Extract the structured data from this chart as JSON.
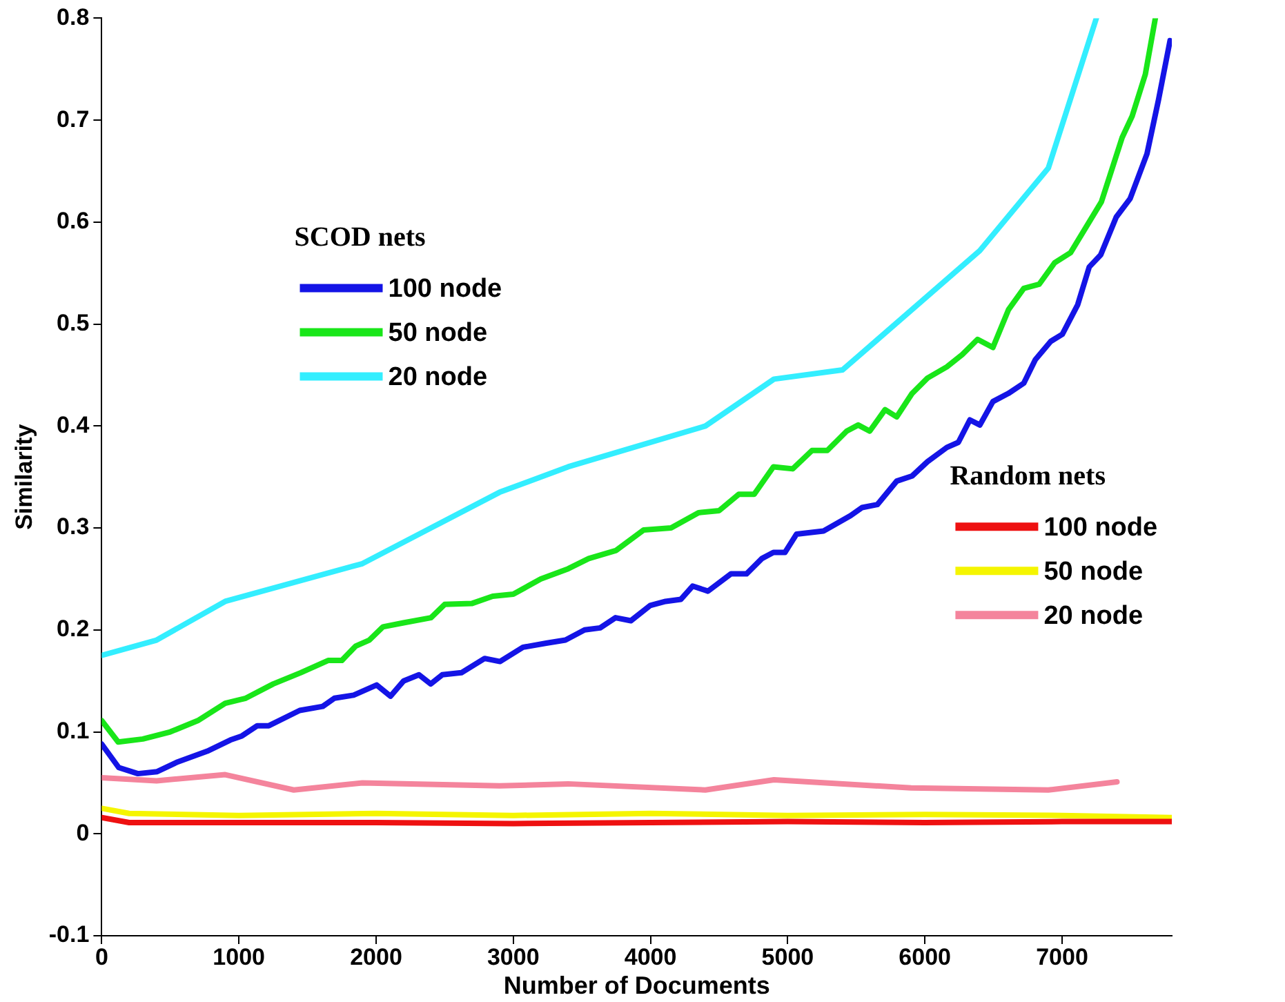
{
  "chart_data": {
    "type": "line",
    "xlabel": "Number of Documents",
    "ylabel": "Similarity",
    "legend_title": "SCOD nets",
    "annotations": [
      "Random nets"
    ],
    "legend": "top right",
    "grid": false,
    "line_style": "solid",
    "marker": "none",
    "xlim": [
      0,
      7800
    ],
    "xticks": [
      0,
      1000,
      2000,
      3000,
      4000,
      5000,
      6000,
      7000
    ],
    "ylim": [
      -0.1,
      0.8
    ],
    "yticks": [
      -0.1,
      0,
      0.1,
      0.2,
      0.3,
      0.4,
      0.5,
      0.6,
      0.7,
      0.8
    ],
    "series": [
      {
        "name": "100 node",
        "color": "#1414e6",
        "x": [
          0,
          124,
          264,
          404,
          545,
          769,
          938,
          1022,
          1134,
          1218,
          1443,
          1611,
          1696,
          1836,
          2004,
          2105,
          2201,
          2313,
          2398,
          2482,
          2622,
          2791,
          2903,
          3071,
          3240,
          3380,
          3520,
          3633,
          3745,
          3857,
          3998,
          4110,
          4222,
          4307,
          4419,
          4587,
          4700,
          4812,
          4896,
          4980,
          5065,
          5261,
          5458,
          5542,
          5654,
          5795,
          5907,
          6019,
          6160,
          6244,
          6328,
          6401,
          6496,
          6609,
          6721,
          6805,
          6917,
          7002,
          7114,
          7198,
          7282,
          7395,
          7496,
          7619,
          7703,
          7787
        ],
        "values": [
          0.088,
          0.065,
          0.059,
          0.061,
          0.07,
          0.081,
          0.092,
          0.096,
          0.106,
          0.106,
          0.121,
          0.125,
          0.133,
          0.136,
          0.146,
          0.135,
          0.15,
          0.156,
          0.147,
          0.156,
          0.158,
          0.172,
          0.169,
          0.183,
          0.187,
          0.19,
          0.2,
          0.202,
          0.212,
          0.209,
          0.224,
          0.228,
          0.23,
          0.243,
          0.238,
          0.255,
          0.255,
          0.27,
          0.276,
          0.276,
          0.294,
          0.297,
          0.312,
          0.32,
          0.323,
          0.346,
          0.351,
          0.365,
          0.379,
          0.384,
          0.406,
          0.401,
          0.424,
          0.432,
          0.442,
          0.465,
          0.483,
          0.49,
          0.519,
          0.556,
          0.568,
          0.605,
          0.623,
          0.667,
          0.72,
          0.778
        ]
      },
      {
        "name": "50 node",
        "color": "#19e619",
        "x": [
          0,
          120,
          300,
          500,
          700,
          900,
          1050,
          1250,
          1450,
          1650,
          1750,
          1850,
          1950,
          2050,
          2200,
          2400,
          2500,
          2700,
          2850,
          3000,
          3200,
          3400,
          3550,
          3750,
          3950,
          4150,
          4350,
          4500,
          4643,
          4756,
          4896,
          5037,
          5177,
          5289,
          5430,
          5514,
          5598,
          5710,
          5795,
          5907,
          6019,
          6160,
          6272,
          6384,
          6496,
          6609,
          6721,
          6833,
          6945,
          7062,
          7287,
          7438,
          7511,
          7607,
          7680
        ],
        "values": [
          0.111,
          0.09,
          0.093,
          0.1,
          0.111,
          0.128,
          0.133,
          0.147,
          0.158,
          0.17,
          0.17,
          0.184,
          0.19,
          0.203,
          0.207,
          0.212,
          0.225,
          0.226,
          0.233,
          0.235,
          0.25,
          0.26,
          0.27,
          0.278,
          0.298,
          0.3,
          0.315,
          0.317,
          0.333,
          0.333,
          0.36,
          0.358,
          0.376,
          0.376,
          0.395,
          0.401,
          0.395,
          0.416,
          0.409,
          0.432,
          0.447,
          0.458,
          0.47,
          0.485,
          0.477,
          0.514,
          0.535,
          0.539,
          0.56,
          0.57,
          0.62,
          0.683,
          0.704,
          0.745,
          0.8
        ]
      },
      {
        "name": "20 node",
        "color": "#33eeff",
        "x": [
          0,
          400,
          900,
          1900,
          2400,
          2900,
          3400,
          4400,
          4900,
          5400,
          6400,
          6900,
          7250
        ],
        "values": [
          0.175,
          0.19,
          0.228,
          0.265,
          0.3,
          0.335,
          0.36,
          0.4,
          0.446,
          0.455,
          0.572,
          0.653,
          0.8
        ]
      },
      {
        "name": "100 node",
        "color": "#ee1111",
        "x": [
          0,
          200,
          1000,
          2000,
          3000,
          4000,
          5000,
          6000,
          7000,
          7800
        ],
        "values": [
          0.016,
          0.011,
          0.011,
          0.011,
          0.01,
          0.011,
          0.012,
          0.011,
          0.012,
          0.012
        ]
      },
      {
        "name": "50 node",
        "color": "#f5f500",
        "x": [
          0,
          200,
          1000,
          2000,
          3000,
          4000,
          5000,
          6000,
          7000,
          7800
        ],
        "values": [
          0.025,
          0.02,
          0.018,
          0.02,
          0.018,
          0.02,
          0.018,
          0.019,
          0.018,
          0.016
        ]
      },
      {
        "name": "20 node",
        "color": "#f4849c",
        "x": [
          0,
          400,
          900,
          1400,
          1900,
          2900,
          3400,
          4400,
          4900,
          5900,
          6900,
          7400
        ],
        "values": [
          0.055,
          0.052,
          0.058,
          0.043,
          0.05,
          0.047,
          0.049,
          0.043,
          0.053,
          0.045,
          0.043,
          0.051
        ]
      }
    ]
  }
}
